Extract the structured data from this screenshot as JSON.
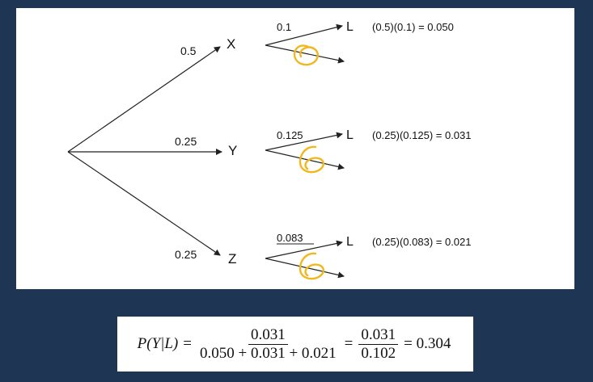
{
  "tree": {
    "branches": [
      {
        "node": "X",
        "prob": "0.5",
        "leaf_label": "L",
        "leaf_prob": "0.1",
        "product": "(0.5)(0.1) = 0.050"
      },
      {
        "node": "Y",
        "prob": "0.25",
        "leaf_label": "L",
        "leaf_prob": "0.125",
        "product": "(0.25)(0.125) = 0.031"
      },
      {
        "node": "Z",
        "prob": "0.25",
        "leaf_label": "L",
        "leaf_prob": "0.083",
        "product": "(0.25)(0.083) = 0.021"
      }
    ],
    "annotation_color": "#f2b71d"
  },
  "formula": {
    "lhs": "P(Y|L)",
    "eq": "=",
    "frac1_num": "0.031",
    "frac1_den": "0.050 + 0.031 + 0.021",
    "frac2_num": "0.031",
    "frac2_den": "0.102",
    "result": "= 0.304"
  }
}
